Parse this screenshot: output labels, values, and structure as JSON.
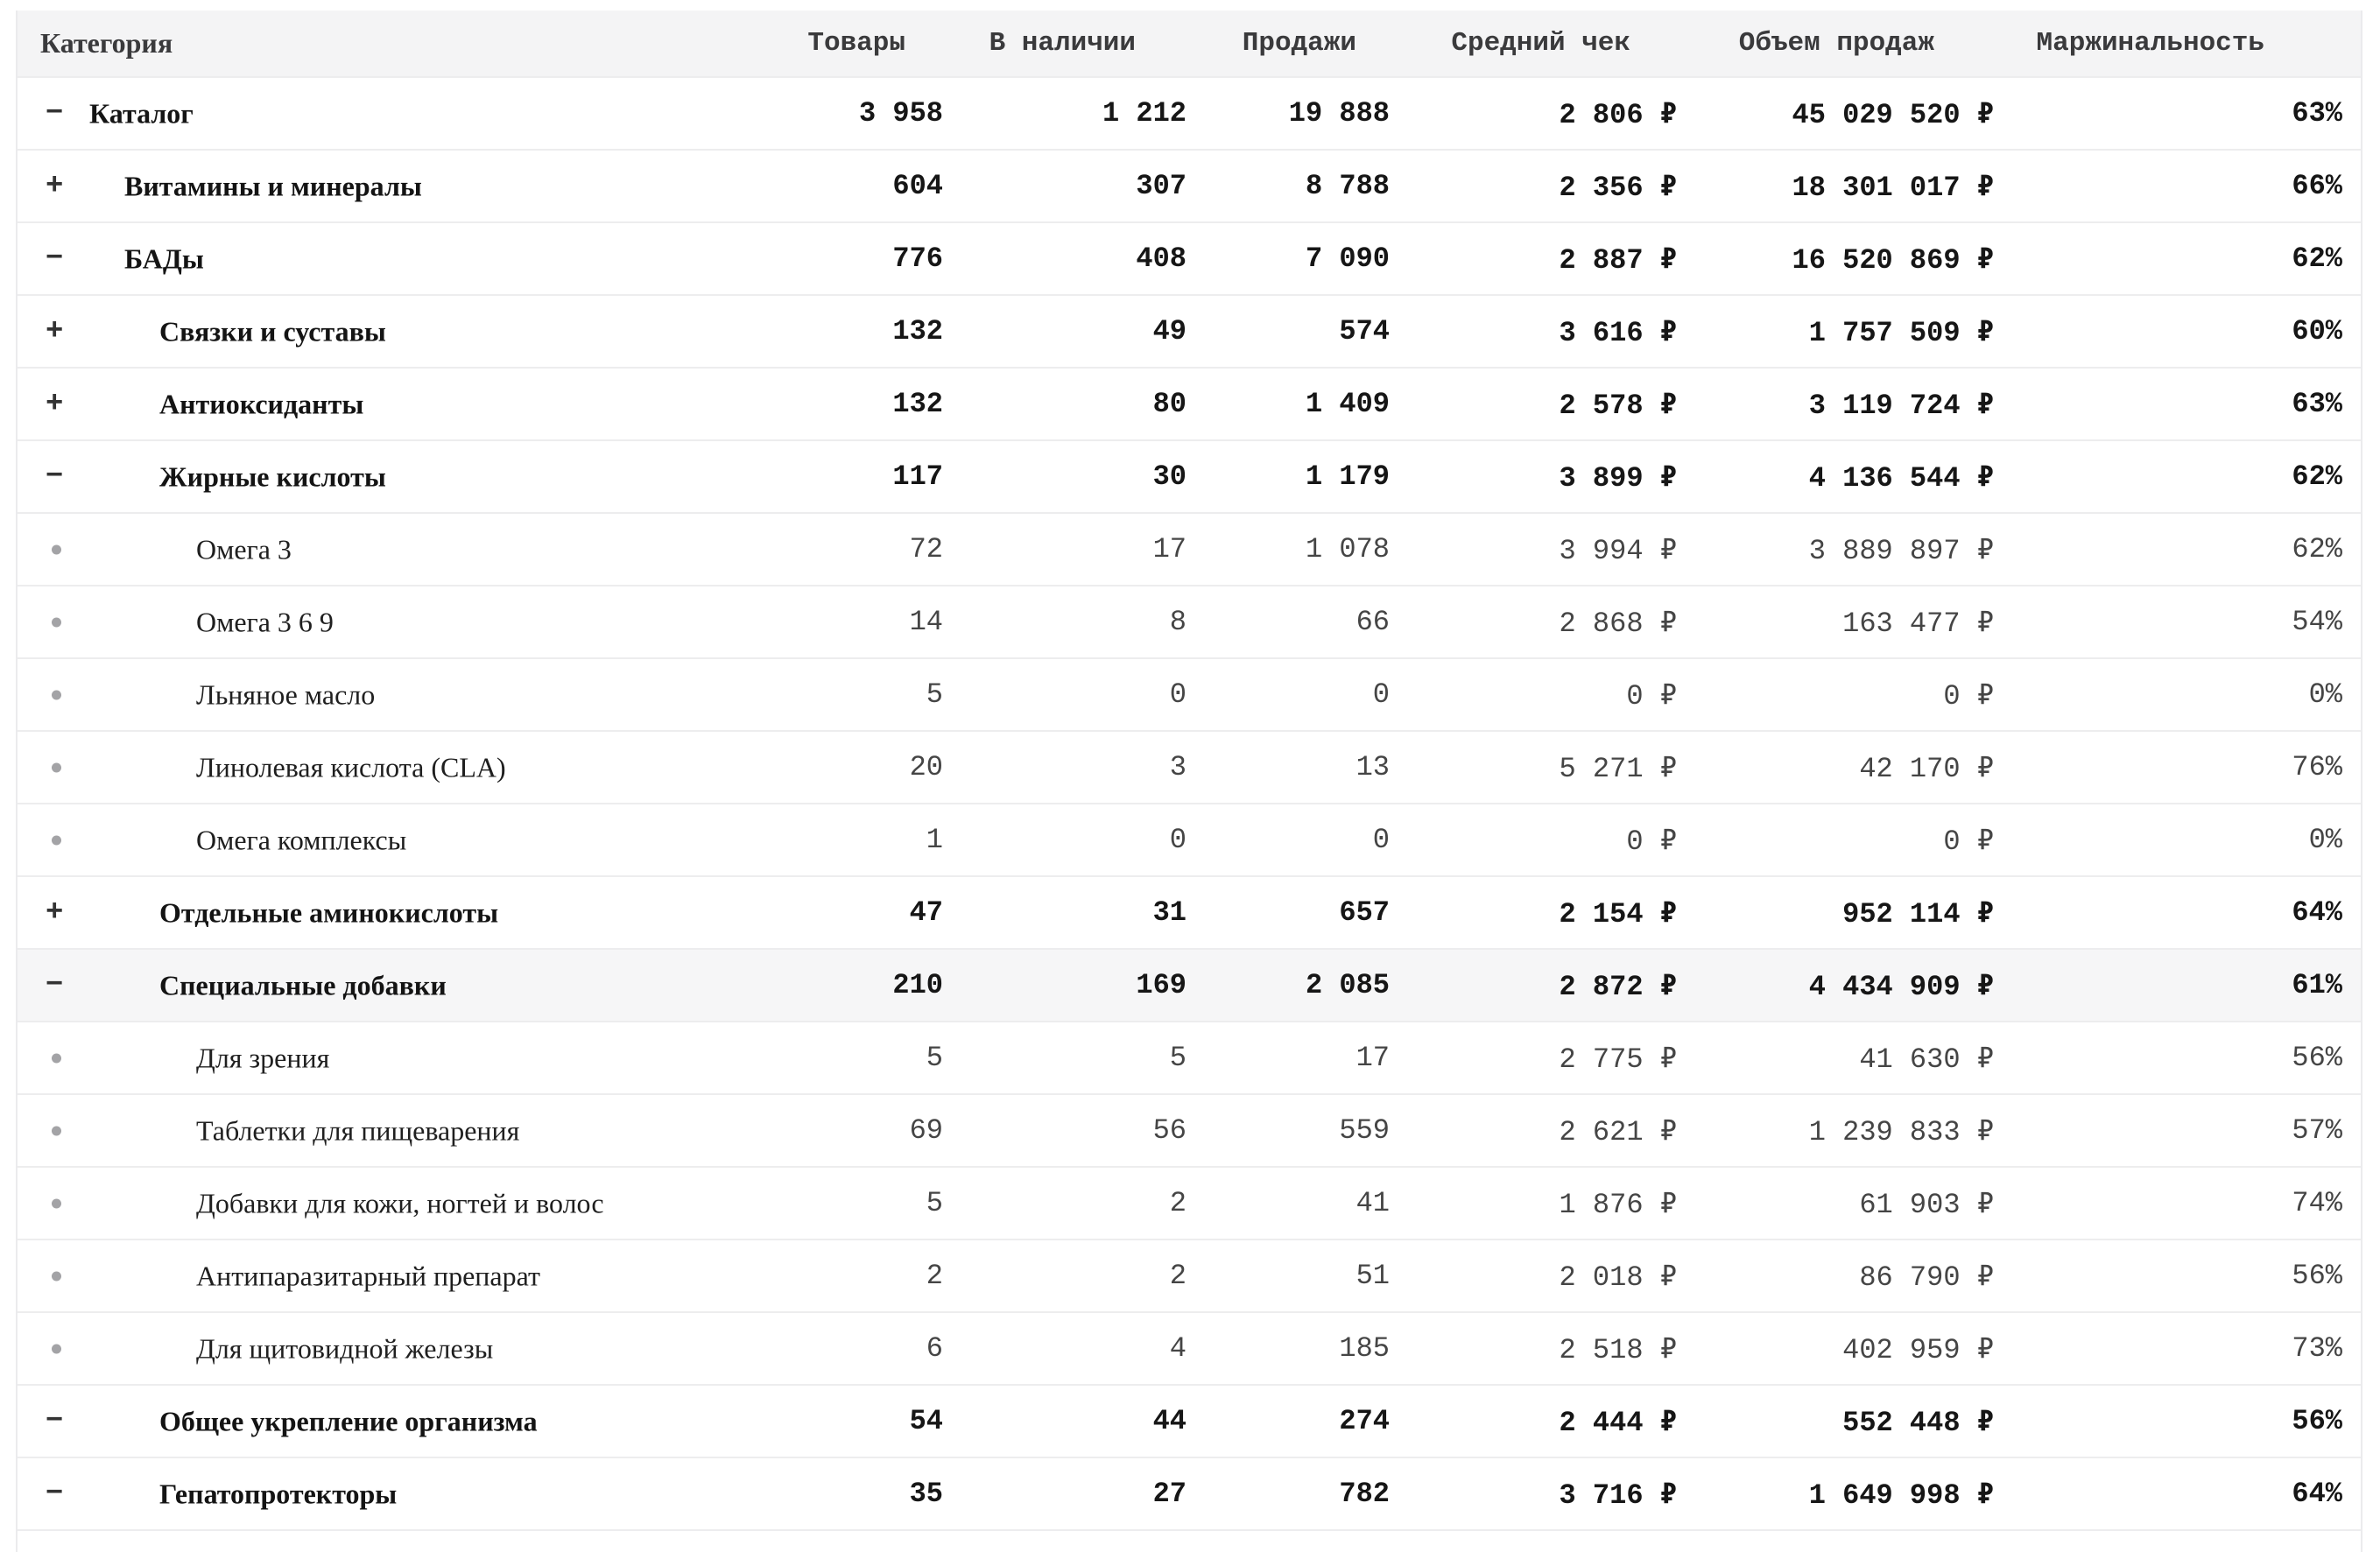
{
  "table": {
    "columns": [
      "Категория",
      "Товары",
      "В наличии",
      "Продажи",
      "Средний чек",
      "Объем продаж",
      "Маржинальность"
    ],
    "value_names": [
      "products-count",
      "in-stock-count",
      "sales-count",
      "avg-check",
      "sales-volume",
      "margin-percent"
    ],
    "currency_symbol": "₽",
    "rows": [
      {
        "label": "Каталог",
        "level": 0,
        "icon": "minus",
        "bold": true,
        "highlighted": false,
        "values": [
          "3 958",
          "1 212",
          "19 888",
          "2 806 ₽",
          "45 029 520 ₽",
          "63%"
        ]
      },
      {
        "label": "Витамины и минералы",
        "level": 1,
        "icon": "plus",
        "bold": true,
        "highlighted": false,
        "values": [
          "604",
          "307",
          "8 788",
          "2 356 ₽",
          "18 301 017 ₽",
          "66%"
        ]
      },
      {
        "label": "БАДы",
        "level": 1,
        "icon": "minus",
        "bold": true,
        "highlighted": false,
        "values": [
          "776",
          "408",
          "7 090",
          "2 887 ₽",
          "16 520 869 ₽",
          "62%"
        ]
      },
      {
        "label": "Связки и суставы",
        "level": 2,
        "icon": "plus",
        "bold": true,
        "highlighted": false,
        "values": [
          "132",
          "49",
          "574",
          "3 616 ₽",
          "1 757 509 ₽",
          "60%"
        ]
      },
      {
        "label": "Антиоксиданты",
        "level": 2,
        "icon": "plus",
        "bold": true,
        "highlighted": false,
        "values": [
          "132",
          "80",
          "1 409",
          "2 578 ₽",
          "3 119 724 ₽",
          "63%"
        ]
      },
      {
        "label": "Жирные кислоты",
        "level": 2,
        "icon": "minus",
        "bold": true,
        "highlighted": false,
        "values": [
          "117",
          "30",
          "1 179",
          "3 899 ₽",
          "4 136 544 ₽",
          "62%"
        ]
      },
      {
        "label": "Омега 3",
        "level": 3,
        "icon": "bullet",
        "bold": false,
        "highlighted": false,
        "values": [
          "72",
          "17",
          "1 078",
          "3 994 ₽",
          "3 889 897 ₽",
          "62%"
        ]
      },
      {
        "label": "Омега 3 6 9",
        "level": 3,
        "icon": "bullet",
        "bold": false,
        "highlighted": false,
        "values": [
          "14",
          "8",
          "66",
          "2 868 ₽",
          "163 477 ₽",
          "54%"
        ]
      },
      {
        "label": "Льняное масло",
        "level": 3,
        "icon": "bullet",
        "bold": false,
        "highlighted": false,
        "values": [
          "5",
          "0",
          "0",
          "0 ₽",
          "0 ₽",
          "0%"
        ]
      },
      {
        "label": "Линолевая кислота (CLA)",
        "level": 3,
        "icon": "bullet",
        "bold": false,
        "highlighted": false,
        "values": [
          "20",
          "3",
          "13",
          "5 271 ₽",
          "42 170 ₽",
          "76%"
        ]
      },
      {
        "label": "Омега комплексы",
        "level": 3,
        "icon": "bullet",
        "bold": false,
        "highlighted": false,
        "values": [
          "1",
          "0",
          "0",
          "0 ₽",
          "0 ₽",
          "0%"
        ]
      },
      {
        "label": "Отдельные аминокислоты",
        "level": 2,
        "icon": "plus",
        "bold": true,
        "highlighted": false,
        "values": [
          "47",
          "31",
          "657",
          "2 154 ₽",
          "952 114 ₽",
          "64%"
        ]
      },
      {
        "label": "Специальные добавки",
        "level": 2,
        "icon": "minus",
        "bold": true,
        "highlighted": true,
        "values": [
          "210",
          "169",
          "2 085",
          "2 872 ₽",
          "4 434 909 ₽",
          "61%"
        ]
      },
      {
        "label": "Для зрения",
        "level": 3,
        "icon": "bullet",
        "bold": false,
        "highlighted": false,
        "values": [
          "5",
          "5",
          "17",
          "2 775 ₽",
          "41 630 ₽",
          "56%"
        ]
      },
      {
        "label": "Таблетки для пищеварения",
        "level": 3,
        "icon": "bullet",
        "bold": false,
        "highlighted": false,
        "values": [
          "69",
          "56",
          "559",
          "2 621 ₽",
          "1 239 833 ₽",
          "57%"
        ]
      },
      {
        "label": "Добавки для кожи, ногтей и волос",
        "level": 3,
        "icon": "bullet",
        "bold": false,
        "highlighted": false,
        "values": [
          "5",
          "2",
          "41",
          "1 876 ₽",
          "61 903 ₽",
          "74%"
        ]
      },
      {
        "label": "Антипаразитарный препарат",
        "level": 3,
        "icon": "bullet",
        "bold": false,
        "highlighted": false,
        "values": [
          "2",
          "2",
          "51",
          "2 018 ₽",
          "86 790 ₽",
          "56%"
        ]
      },
      {
        "label": "Для щитовидной железы",
        "level": 3,
        "icon": "bullet",
        "bold": false,
        "highlighted": false,
        "values": [
          "6",
          "4",
          "185",
          "2 518 ₽",
          "402 959 ₽",
          "73%"
        ]
      },
      {
        "label": "Общее укрепление организма",
        "level": 2,
        "icon": "minus",
        "bold": true,
        "highlighted": false,
        "values": [
          "54",
          "44",
          "274",
          "2 444 ₽",
          "552 448 ₽",
          "56%"
        ]
      },
      {
        "label": "Гепатопротекторы",
        "level": 2,
        "icon": "minus",
        "bold": true,
        "highlighted": false,
        "values": [
          "35",
          "27",
          "782",
          "3 716 ₽",
          "1 649 998 ₽",
          "64%"
        ]
      }
    ]
  },
  "icons": {
    "collapse_glyph": "−",
    "expand_glyph": "+"
  },
  "colors": {
    "header_bg": "#f4f4f5",
    "row_highlight_bg": "#f6f6f7",
    "separator": "#ededee",
    "branch_text": "#161616",
    "leaf_number_text": "#454545",
    "header_text": "#3a3a3c",
    "bullet": "#a3a3a6"
  }
}
